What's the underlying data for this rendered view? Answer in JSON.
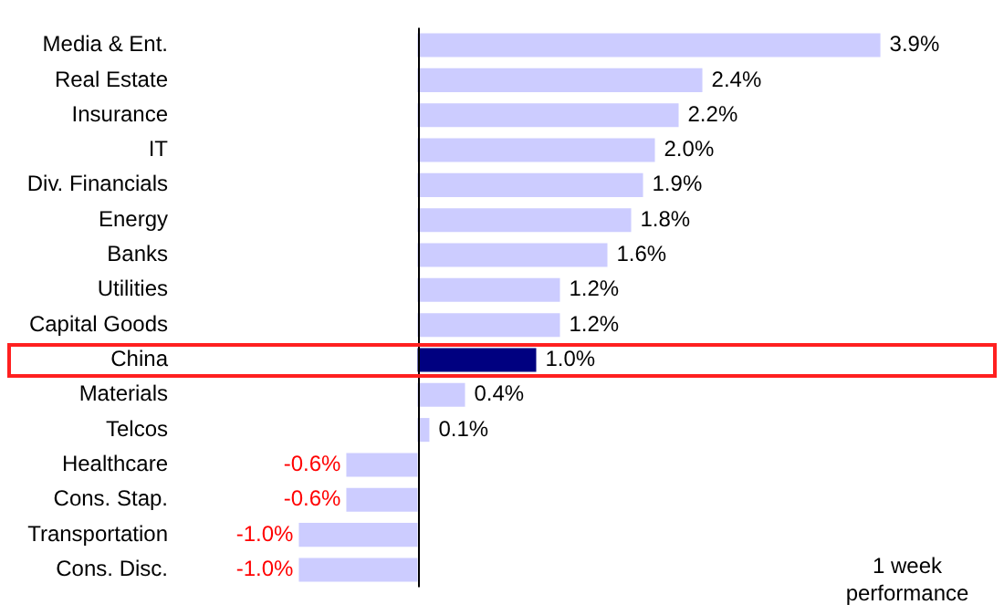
{
  "chart_data": {
    "type": "bar",
    "orientation": "horizontal",
    "categories": [
      "Media & Ent.",
      "Real Estate",
      "Insurance",
      "IT",
      "Div. Financials",
      "Energy",
      "Banks",
      "Utilities",
      "Capital Goods",
      "China",
      "Materials",
      "Telcos",
      "Healthcare",
      "Cons. Stap.",
      "Transportation",
      "Cons. Disc."
    ],
    "values": [
      3.9,
      2.4,
      2.2,
      2.0,
      1.9,
      1.8,
      1.6,
      1.2,
      1.2,
      1.0,
      0.4,
      0.1,
      -0.6,
      -0.6,
      -1.0,
      -1.0
    ],
    "value_labels": [
      "3.9%",
      "2.4%",
      "2.2%",
      "2.0%",
      "1.9%",
      "1.8%",
      "1.6%",
      "1.2%",
      "1.2%",
      "1.0%",
      "0.4%",
      "0.1%",
      "-0.6%",
      "-0.6%",
      "-1.0%",
      "-1.0%"
    ],
    "colors": [
      "#ccccff",
      "#ccccff",
      "#ccccff",
      "#ccccff",
      "#ccccff",
      "#ccccff",
      "#ccccff",
      "#ccccff",
      "#ccccff",
      "#000080",
      "#ccccff",
      "#ccccff",
      "#ccccff",
      "#ccccff",
      "#ccccff",
      "#ccccff"
    ],
    "tick_labels": "y",
    "legend": false,
    "annotations": [
      "1 week performance"
    ]
  }
}
